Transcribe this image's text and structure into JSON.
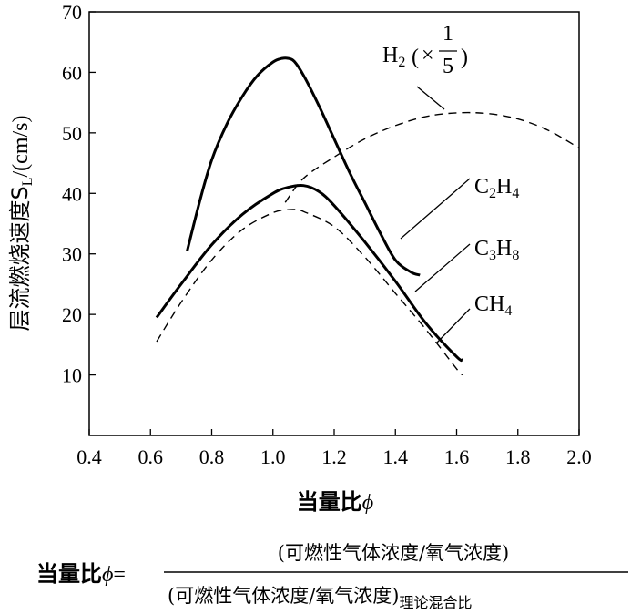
{
  "chart_data": {
    "type": "line",
    "ylabel_prefix": "层流燃烧速度S",
    "ylabel_sub": "L",
    "ylabel_unit": "/(cm/s)",
    "xlabel_text": "当量比",
    "xlabel_symbol": "ϕ",
    "xlim": [
      0.4,
      2.0
    ],
    "ylim": [
      0,
      70
    ],
    "x_ticks": [
      "0.4",
      "0.6",
      "0.8",
      "1.0",
      "1.2",
      "1.4",
      "1.6",
      "1.8",
      "2.0"
    ],
    "y_ticks": [
      "10",
      "20",
      "30",
      "40",
      "50",
      "60",
      "70"
    ],
    "grid": false,
    "series": [
      {
        "name": "H2(×1/5)",
        "style": "dashed",
        "x": [
          1.04,
          1.1,
          1.2,
          1.3,
          1.4,
          1.5,
          1.6,
          1.7,
          1.8,
          1.9,
          2.0
        ],
        "y": [
          38.5,
          42.5,
          46.0,
          49.0,
          51.2,
          52.7,
          53.3,
          53.2,
          52.3,
          50.4,
          47.5
        ]
      },
      {
        "name": "C2H4",
        "style": "solid",
        "x": [
          0.72,
          0.76,
          0.8,
          0.85,
          0.9,
          0.95,
          1.0,
          1.03,
          1.05,
          1.07,
          1.1,
          1.15,
          1.2,
          1.25,
          1.3,
          1.35,
          1.4,
          1.45,
          1.48
        ],
        "y": [
          30.5,
          38.5,
          45.5,
          51.5,
          56.0,
          59.5,
          61.7,
          62.3,
          62.3,
          61.8,
          59.5,
          54.5,
          49.0,
          43.5,
          38.5,
          33.5,
          29.0,
          27.0,
          26.5
        ]
      },
      {
        "name": "C3H8",
        "style": "solid",
        "x": [
          0.62,
          0.7,
          0.8,
          0.9,
          1.0,
          1.05,
          1.1,
          1.15,
          1.2,
          1.3,
          1.4,
          1.5,
          1.6,
          1.62
        ],
        "y": [
          19.5,
          25.0,
          31.5,
          36.5,
          40.0,
          41.0,
          41.3,
          40.3,
          38.0,
          32.0,
          25.5,
          18.5,
          13.0,
          12.5
        ]
      },
      {
        "name": "CH4",
        "style": "dashed",
        "x": [
          0.62,
          0.7,
          0.8,
          0.9,
          1.0,
          1.05,
          1.08,
          1.1,
          1.2,
          1.3,
          1.4,
          1.5,
          1.6,
          1.62
        ],
        "y": [
          15.5,
          22.0,
          29.0,
          34.0,
          36.8,
          37.3,
          37.3,
          37.0,
          34.5,
          29.5,
          23.5,
          17.5,
          11.0,
          10.0
        ]
      }
    ],
    "annotations": [
      {
        "base": "H",
        "sub": "2",
        "rest": "(×",
        "frac_num": "1",
        "frac_den": "5",
        "close": ")"
      },
      {
        "parts": [
          "C",
          "2",
          "H",
          "4"
        ]
      },
      {
        "parts": [
          "C",
          "3",
          "H",
          "8"
        ]
      },
      {
        "parts": [
          "CH",
          "4"
        ]
      }
    ]
  },
  "formula": {
    "lhs": "当量比",
    "lhs_symbol": "ϕ",
    "equals": "=",
    "numerator": "(可燃性气体浓度/氧气浓度)",
    "denominator": "(可燃性气体浓度/氧气浓度)",
    "denominator_sub": "理论混合比"
  }
}
